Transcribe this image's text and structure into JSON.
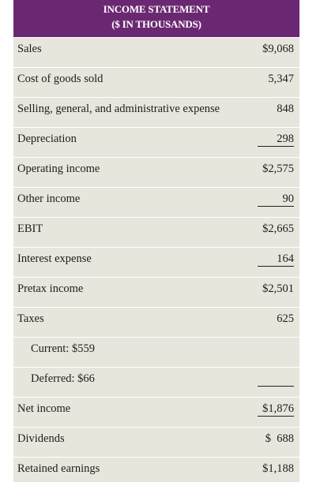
{
  "header": {
    "line1": "INCOME STATEMENT",
    "line2": "($ IN THOUSANDS)"
  },
  "rows": [
    {
      "label": "Sales",
      "value": "$9,068"
    },
    {
      "label": "Cost of goods sold",
      "value": "5,347"
    },
    {
      "label": "Selling, general, and administrative expense",
      "value": "848"
    },
    {
      "label": "Depreciation",
      "value": "298"
    },
    {
      "label": "Operating income",
      "value": "$2,575"
    },
    {
      "label": "Other income",
      "value": "90"
    },
    {
      "label": "EBIT",
      "value": "$2,665"
    },
    {
      "label": "Interest expense",
      "value": "164"
    },
    {
      "label": "Pretax income",
      "value": "$2,501"
    },
    {
      "label": "Taxes",
      "value": "625"
    },
    {
      "label": "Current: $559",
      "value": ""
    },
    {
      "label": "Deferred: $66",
      "value": ""
    },
    {
      "label": "Net income",
      "value": "$1,876"
    },
    {
      "label": "Dividends",
      "value": "$  688"
    },
    {
      "label": "Retained earnings",
      "value": "$1,188"
    }
  ],
  "colors": {
    "header_bg": "#6b2872",
    "table_bg": "#e8e5dc"
  }
}
